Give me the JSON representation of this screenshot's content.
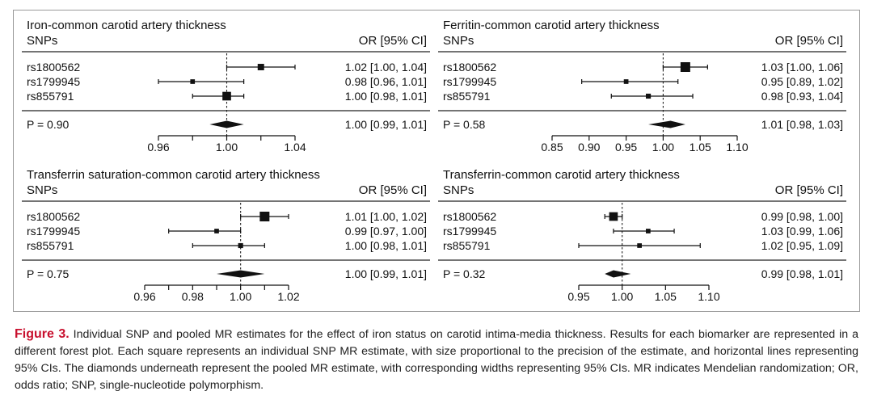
{
  "figure": {
    "caption_label": "Figure 3.",
    "caption_text": " Individual SNP and pooled MR estimates for the effect of iron status on carotid intima-media thickness. Results for each biomarker are represented in a different forest plot. Each square represents an individual SNP MR estimate, with size proportional to the precision of the estimate, and horizontal lines representing 95% CIs. The diamonds underneath represent the pooled MR estimate, with corresponding widths representing 95% CIs. MR indicates Mendelian randomization; OR, odds ratio; SNP, single-nucleotide polymorphism."
  },
  "chart_data": [
    {
      "type": "forest",
      "title": "Iron-common carotid artery thickness",
      "col_left": "SNPs",
      "col_right": "OR [95% CI]",
      "rows": [
        {
          "label": "rs1800562",
          "or": 1.02,
          "lo": 1.0,
          "hi": 1.04,
          "text": "1.02 [1.00, 1.04]",
          "weight": 0.55
        },
        {
          "label": "rs1799945",
          "or": 0.98,
          "lo": 0.96,
          "hi": 1.01,
          "text": "0.98 [0.96, 1.01]",
          "weight": 0.3
        },
        {
          "label": "rs855791",
          "or": 1.0,
          "lo": 0.98,
          "hi": 1.01,
          "text": "1.00 [0.98, 1.01]",
          "weight": 0.85
        }
      ],
      "pooled": {
        "label": "P = 0.90",
        "or": 1.0,
        "lo": 0.99,
        "hi": 1.01,
        "text": "1.00 [0.99, 1.01]"
      },
      "xlim": [
        0.96,
        1.04
      ],
      "ticks": [
        0.96,
        0.98,
        1.0,
        1.02,
        1.04
      ],
      "tick_labels": [
        "0.96",
        "",
        "1.00",
        "",
        "1.04"
      ]
    },
    {
      "type": "forest",
      "title": "Ferritin-common carotid artery thickness",
      "col_left": "SNPs",
      "col_right": "OR [95% CI]",
      "rows": [
        {
          "label": "rs1800562",
          "or": 1.03,
          "lo": 1.0,
          "hi": 1.06,
          "text": "1.03 [1.00, 1.06]",
          "weight": 1.0
        },
        {
          "label": "rs1799945",
          "or": 0.95,
          "lo": 0.89,
          "hi": 1.02,
          "text": "0.95 [0.89, 1.02]",
          "weight": 0.3
        },
        {
          "label": "rs855791",
          "or": 0.98,
          "lo": 0.93,
          "hi": 1.04,
          "text": "0.98 [0.93, 1.04]",
          "weight": 0.35
        }
      ],
      "pooled": {
        "label": "P = 0.58",
        "or": 1.01,
        "lo": 0.98,
        "hi": 1.03,
        "text": "1.01 [0.98, 1.03]"
      },
      "xlim": [
        0.85,
        1.1
      ],
      "ticks": [
        0.85,
        0.9,
        0.95,
        1.0,
        1.05,
        1.1
      ],
      "tick_labels": [
        "0.85",
        "0.90",
        "0.95",
        "1.00",
        "1.05",
        "1.10"
      ]
    },
    {
      "type": "forest",
      "title": "Transferrin saturation-common carotid artery thickness",
      "col_left": "SNPs",
      "col_right": "OR [95% CI]",
      "rows": [
        {
          "label": "rs1800562",
          "or": 1.01,
          "lo": 1.0,
          "hi": 1.02,
          "text": "1.01 [1.00, 1.02]",
          "weight": 1.0
        },
        {
          "label": "rs1799945",
          "or": 0.99,
          "lo": 0.97,
          "hi": 1.0,
          "text": "0.99 [0.97, 1.00]",
          "weight": 0.3
        },
        {
          "label": "rs855791",
          "or": 1.0,
          "lo": 0.98,
          "hi": 1.01,
          "text": "1.00 [0.98, 1.01]",
          "weight": 0.35
        }
      ],
      "pooled": {
        "label": "P = 0.75",
        "or": 1.0,
        "lo": 0.99,
        "hi": 1.01,
        "text": "1.00 [0.99, 1.01]"
      },
      "xlim": [
        0.96,
        1.02
      ],
      "ticks": [
        0.96,
        0.97,
        0.98,
        0.99,
        1.0,
        1.01,
        1.02
      ],
      "tick_labels": [
        "0.96",
        "",
        "0.98",
        "",
        "1.00",
        "",
        "1.02"
      ]
    },
    {
      "type": "forest",
      "title": "Transferrin-common carotid artery thickness",
      "col_left": "SNPs",
      "col_right": "OR [95% CI]",
      "rows": [
        {
          "label": "rs1800562",
          "or": 0.99,
          "lo": 0.98,
          "hi": 1.0,
          "text": "0.99 [0.98, 1.00]",
          "weight": 0.85
        },
        {
          "label": "rs1799945",
          "or": 1.03,
          "lo": 0.99,
          "hi": 1.06,
          "text": "1.03 [0.99, 1.06]",
          "weight": 0.3
        },
        {
          "label": "rs855791",
          "or": 1.02,
          "lo": 0.95,
          "hi": 1.09,
          "text": "1.02 [0.95, 1.09]",
          "weight": 0.3
        }
      ],
      "pooled": {
        "label": "P = 0.32",
        "or": 0.99,
        "lo": 0.98,
        "hi": 1.01,
        "text": "0.99 [0.98, 1.01]"
      },
      "xlim": [
        0.95,
        1.1
      ],
      "ticks": [
        0.95,
        1.0,
        1.05,
        1.1
      ],
      "tick_labels": [
        "0.95",
        "1.00",
        "1.05",
        "1.10"
      ]
    }
  ]
}
